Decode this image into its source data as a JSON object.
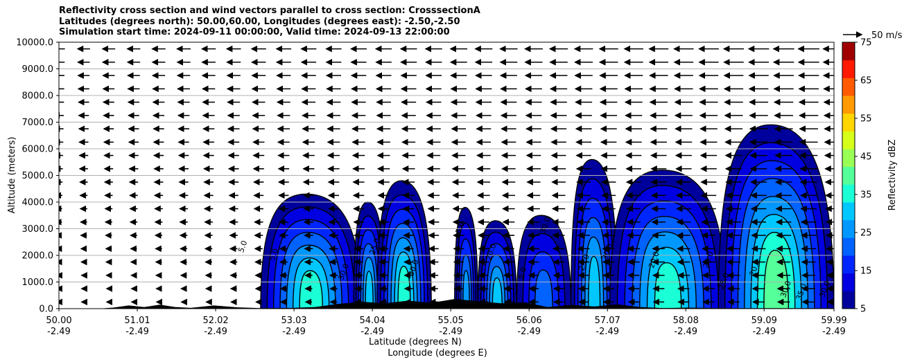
{
  "title_lines": [
    "Reflectivity cross section and wind vectors parallel to cross section: CrosssectionA",
    "Latitudes (degrees north): 50.00,60.00, Longitudes (degrees east): -2.50,-2.50",
    "Simulation start time: 2024-09-11 00:00:00, Valid time: 2024-09-13 22:00:00"
  ],
  "chart_data": {
    "type": "heatmap",
    "subtype": "filled-contour cross section with wind vectors",
    "title": "Reflectivity cross section and wind vectors parallel to cross section: CrosssectionA",
    "xlabel": "Latitude (degrees N)",
    "xlabel2": "Longitude (degrees E)",
    "ylabel": "Altitude (meters)",
    "xlim": [
      50.0,
      59.99
    ],
    "ylim": [
      0,
      10000
    ],
    "x_ticks": [
      {
        "lat": "50.00",
        "lon": "-2.49"
      },
      {
        "lat": "51.01",
        "lon": "-2.49"
      },
      {
        "lat": "52.02",
        "lon": "-2.49"
      },
      {
        "lat": "53.03",
        "lon": "-2.49"
      },
      {
        "lat": "54.04",
        "lon": "-2.49"
      },
      {
        "lat": "55.05",
        "lon": "-2.49"
      },
      {
        "lat": "56.06",
        "lon": "-2.49"
      },
      {
        "lat": "57.07",
        "lon": "-2.49"
      },
      {
        "lat": "58.08",
        "lon": "-2.49"
      },
      {
        "lat": "59.09",
        "lon": "-2.49"
      },
      {
        "lat": "59.99",
        "lon": "-2.49"
      }
    ],
    "y_ticks": [
      "0.0",
      "1000.0",
      "2000.0",
      "3000.0",
      "4000.0",
      "5000.0",
      "6000.0",
      "7000.0",
      "8000.0",
      "9000.0",
      "10000.0"
    ],
    "grid": "horizontal",
    "colorbar": {
      "label": "Reflectivity dBZ",
      "levels": [
        5,
        10,
        15,
        20,
        25,
        30,
        35,
        40,
        45,
        50,
        55,
        60,
        65,
        70,
        75
      ],
      "tick_labels": [
        "5",
        "15",
        "25",
        "35",
        "45",
        "55",
        "65",
        "75"
      ],
      "colors": [
        "#00009c",
        "#0000e0",
        "#0026ff",
        "#0062ff",
        "#0098ff",
        "#00c8ff",
        "#1affd6",
        "#55ff9a",
        "#9aff55",
        "#d6ff1a",
        "#ffd600",
        "#ff9a00",
        "#ff5a00",
        "#ff1a00",
        "#a00000"
      ]
    },
    "vector_key": "50 m/s",
    "wind": "mostly westward (leftward) vectors, strongest at upper levels on the northern side",
    "cells": [
      {
        "x0": 52.6,
        "x1": 53.9,
        "top": 4300,
        "peak": 35
      },
      {
        "x0": 53.8,
        "x1": 54.2,
        "top": 4000,
        "peak": 30
      },
      {
        "x0": 54.1,
        "x1": 54.8,
        "top": 4800,
        "peak": 35
      },
      {
        "x0": 55.1,
        "x1": 55.4,
        "top": 3800,
        "peak": 25
      },
      {
        "x0": 55.4,
        "x1": 55.9,
        "top": 3300,
        "peak": 30
      },
      {
        "x0": 55.9,
        "x1": 56.6,
        "top": 3500,
        "peak": 20
      },
      {
        "x0": 56.6,
        "x1": 57.2,
        "top": 5600,
        "peak": 30
      },
      {
        "x0": 57.1,
        "x1": 58.6,
        "top": 5200,
        "peak": 35
      },
      {
        "x0": 58.5,
        "x1": 59.99,
        "top": 6900,
        "peak": 40
      }
    ],
    "contour_labels": [
      "5.0",
      "5.0",
      "30.0",
      "25.0",
      "30.0",
      "5.0",
      "20.0",
      "5.0",
      "30.0",
      "25.0",
      "30.0",
      "20.0",
      "20.0",
      "25.0",
      "20.0",
      "30.0",
      "35.0",
      "30.0"
    ]
  }
}
